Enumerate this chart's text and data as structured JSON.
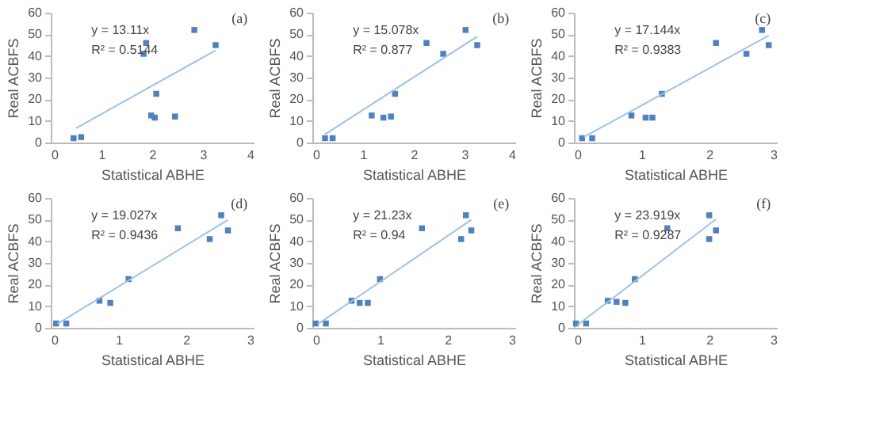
{
  "chart_data": [
    {
      "type": "scatter",
      "xlabel": "Statistical ABHE",
      "ylabel": "Real ACBFS",
      "xlim": [
        0,
        4
      ],
      "xticks": [
        0,
        1,
        2,
        3,
        4
      ],
      "ylim": [
        0,
        60
      ],
      "yticks": [
        0,
        10,
        20,
        30,
        40,
        50,
        60
      ],
      "grid": false,
      "annotations": [
        "y = 13.11x",
        "R² = 0.5144",
        "(a)"
      ],
      "series": [
        {
          "marker": "square",
          "color": "#4f81bd",
          "x": [
            0.45,
            0.6,
            1.83,
            1.88,
            2.83,
            3.25,
            1.98,
            2.05,
            2.08,
            2.45
          ],
          "values": [
            2,
            2.5,
            41,
            46,
            52,
            45,
            12.5,
            11.5,
            22.5,
            12
          ]
        },
        {
          "type": "line",
          "color": "#9dc3e6",
          "x": [
            0.5,
            3.25
          ],
          "values": [
            6.6,
            42.6
          ]
        }
      ]
    },
    {
      "type": "scatter",
      "xlabel": "Statistical ABHE",
      "ylabel": "Real ACBFS",
      "xlim": [
        0,
        4
      ],
      "xticks": [
        0,
        1,
        2,
        3,
        4
      ],
      "ylim": [
        0,
        60
      ],
      "yticks": [
        0,
        10,
        20,
        30,
        40,
        50,
        60
      ],
      "grid": false,
      "annotations": [
        "y = 15.078x",
        "R² = 0.877",
        "(b)"
      ],
      "series": [
        {
          "marker": "square",
          "color": "#4f81bd",
          "x": [
            0.25,
            0.4,
            1.17,
            1.4,
            1.55,
            1.63,
            2.25,
            2.58,
            3.02,
            3.25
          ],
          "values": [
            2,
            2,
            12.5,
            11.5,
            12,
            22.5,
            46,
            41,
            52,
            45
          ]
        },
        {
          "type": "line",
          "color": "#9dc3e6",
          "x": [
            0.25,
            3.25
          ],
          "values": [
            3.8,
            49.0
          ]
        }
      ]
    },
    {
      "type": "scatter",
      "xlabel": "Statistical ABHE",
      "ylabel": "Real ACBFS",
      "xlim": [
        0,
        3
      ],
      "xticks": [
        0,
        1,
        2,
        3
      ],
      "ylim": [
        0,
        60
      ],
      "yticks": [
        0,
        10,
        20,
        30,
        40,
        50,
        60
      ],
      "grid": false,
      "annotations": [
        "y = 17.144x",
        "R² = 0.9383",
        "(c)"
      ],
      "series": [
        {
          "marker": "square",
          "color": "#4f81bd",
          "x": [
            0.12,
            0.27,
            0.85,
            1.06,
            1.16,
            1.3,
            2.1,
            2.55,
            2.78,
            2.88
          ],
          "values": [
            2,
            2,
            12.5,
            11.5,
            11.5,
            22.5,
            46,
            41,
            52,
            45
          ]
        },
        {
          "type": "line",
          "color": "#9dc3e6",
          "x": [
            0.15,
            2.88
          ],
          "values": [
            2.6,
            49.4
          ]
        }
      ]
    },
    {
      "type": "scatter",
      "xlabel": "Statistical ABHE",
      "ylabel": "Real ACBFS",
      "xlim": [
        0,
        3
      ],
      "xticks": [
        0,
        1,
        2,
        3
      ],
      "ylim": [
        0,
        60
      ],
      "yticks": [
        0,
        10,
        20,
        30,
        40,
        50,
        60
      ],
      "grid": false,
      "annotations": [
        "y = 19.027x",
        "R² = 0.9436",
        "(d)"
      ],
      "series": [
        {
          "marker": "square",
          "color": "#4f81bd",
          "x": [
            0.08,
            0.23,
            0.72,
            0.88,
            1.15,
            1.88,
            2.35,
            2.52,
            2.62
          ],
          "values": [
            2,
            2,
            12.5,
            11.5,
            22.5,
            46,
            41,
            52,
            45
          ]
        },
        {
          "type": "line",
          "color": "#9dc3e6",
          "x": [
            0.1,
            2.62
          ],
          "values": [
            1.9,
            49.9
          ]
        }
      ]
    },
    {
      "type": "scatter",
      "xlabel": "Statistical ABHE",
      "ylabel": "Real ACBFS",
      "xlim": [
        0,
        3
      ],
      "xticks": [
        0,
        1,
        2,
        3
      ],
      "ylim": [
        0,
        60
      ],
      "yticks": [
        0,
        10,
        20,
        30,
        40,
        50,
        60
      ],
      "grid": false,
      "annotations": [
        "y = 21.23x",
        "R² = 0.94",
        "(e)"
      ],
      "series": [
        {
          "marker": "square",
          "color": "#4f81bd",
          "x": [
            0.05,
            0.2,
            0.58,
            0.7,
            0.82,
            1.0,
            1.62,
            2.2,
            2.27,
            2.35
          ],
          "values": [
            2,
            2,
            12.5,
            11.5,
            11.5,
            22.5,
            46,
            41,
            52,
            45
          ]
        },
        {
          "type": "line",
          "color": "#9dc3e6",
          "x": [
            0.08,
            2.35
          ],
          "values": [
            1.7,
            49.9
          ]
        }
      ]
    },
    {
      "type": "scatter",
      "xlabel": "Statistical ABHE",
      "ylabel": "Real ACBFS",
      "xlim": [
        0,
        3
      ],
      "xticks": [
        0,
        1,
        2,
        3
      ],
      "ylim": [
        0,
        60
      ],
      "yticks": [
        0,
        10,
        20,
        30,
        40,
        50,
        60
      ],
      "grid": false,
      "annotations": [
        "y = 23.919x",
        "R² = 0.9287",
        "(f)"
      ],
      "series": [
        {
          "marker": "square",
          "color": "#4f81bd",
          "x": [
            0.03,
            0.18,
            0.5,
            0.63,
            0.76,
            0.9,
            1.38,
            2.0,
            2.0,
            2.1
          ],
          "values": [
            2,
            2,
            12.5,
            12,
            11.5,
            22.5,
            46,
            41,
            52,
            45
          ]
        },
        {
          "type": "line",
          "color": "#9dc3e6",
          "x": [
            0.05,
            2.1
          ],
          "values": [
            1.2,
            50.2
          ]
        }
      ]
    }
  ]
}
